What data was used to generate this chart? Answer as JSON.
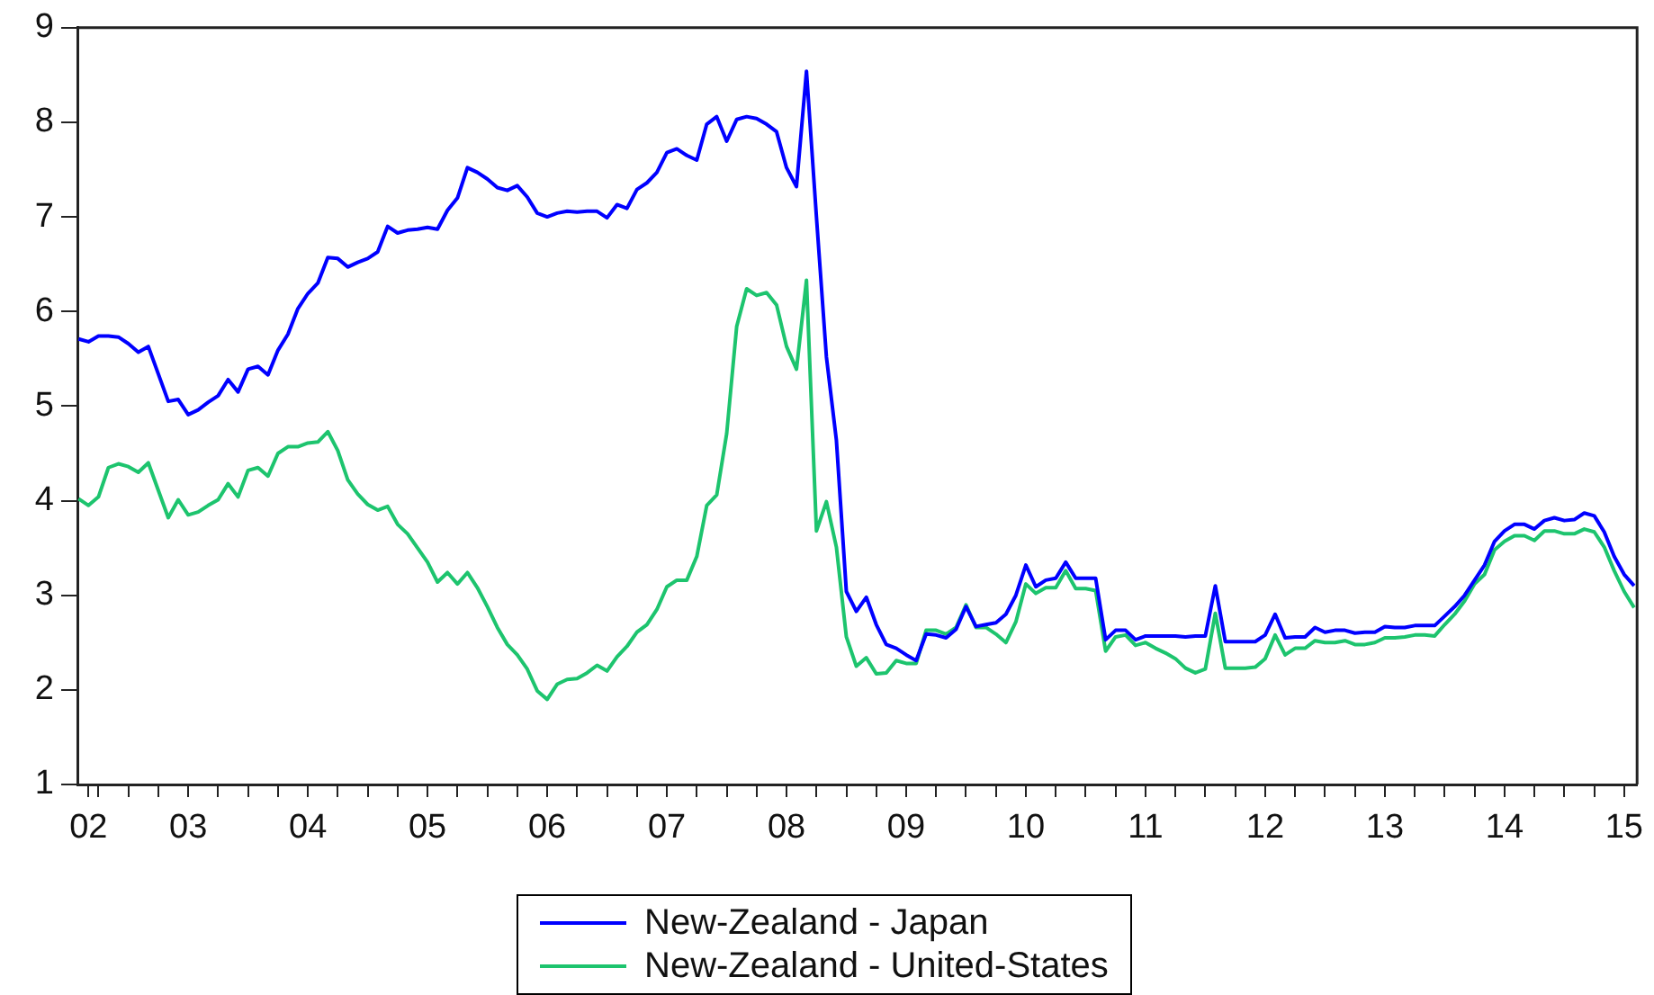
{
  "chart_data": {
    "type": "line",
    "legend": "bottom",
    "grid": false,
    "line_style": "solid",
    "marker": "none",
    "x": [
      "2002-08",
      "2002-09",
      "2002-10",
      "2002-11",
      "2002-12",
      "2003-01",
      "2003-02",
      "2003-03",
      "2003-04",
      "2003-05",
      "2003-06",
      "2003-07",
      "2003-08",
      "2003-09",
      "2003-10",
      "2003-11",
      "2003-12",
      "2004-01",
      "2004-02",
      "2004-03",
      "2004-04",
      "2004-05",
      "2004-06",
      "2004-07",
      "2004-08",
      "2004-09",
      "2004-10",
      "2004-11",
      "2004-12",
      "2005-01",
      "2005-02",
      "2005-03",
      "2005-04",
      "2005-05",
      "2005-06",
      "2005-07",
      "2005-08",
      "2005-09",
      "2005-10",
      "2005-11",
      "2005-12",
      "2006-01",
      "2006-02",
      "2006-03",
      "2006-04",
      "2006-05",
      "2006-06",
      "2006-07",
      "2006-08",
      "2006-09",
      "2006-10",
      "2006-11",
      "2006-12",
      "2007-01",
      "2007-02",
      "2007-03",
      "2007-04",
      "2007-05",
      "2007-06",
      "2007-07",
      "2007-08",
      "2007-09",
      "2007-10",
      "2007-11",
      "2007-12",
      "2008-01",
      "2008-02",
      "2008-03",
      "2008-04",
      "2008-05",
      "2008-06",
      "2008-07",
      "2008-08",
      "2008-09",
      "2008-10",
      "2008-11",
      "2008-12",
      "2009-01",
      "2009-02",
      "2009-03",
      "2009-04",
      "2009-05",
      "2009-06",
      "2009-07",
      "2009-08",
      "2009-09",
      "2009-10",
      "2009-11",
      "2009-12",
      "2010-01",
      "2010-02",
      "2010-03",
      "2010-04",
      "2010-05",
      "2010-06",
      "2010-07",
      "2010-08",
      "2010-09",
      "2010-10",
      "2010-11",
      "2010-12",
      "2011-01",
      "2011-02",
      "2011-03",
      "2011-04",
      "2011-05",
      "2011-06",
      "2011-07",
      "2011-08",
      "2011-09",
      "2011-10",
      "2011-11",
      "2011-12",
      "2012-01",
      "2012-02",
      "2012-03",
      "2012-04",
      "2012-05",
      "2012-06",
      "2012-07",
      "2012-08",
      "2012-09",
      "2012-10",
      "2012-11",
      "2012-12",
      "2013-01",
      "2013-02",
      "2013-03",
      "2013-04",
      "2013-05",
      "2013-06",
      "2013-07",
      "2013-08",
      "2013-09",
      "2013-10",
      "2013-11",
      "2013-12",
      "2014-01",
      "2014-02",
      "2014-03",
      "2014-04",
      "2014-05",
      "2014-06",
      "2014-07",
      "2014-08",
      "2014-09",
      "2014-10",
      "2014-11",
      "2014-12",
      "2015-01",
      "2015-02",
      "2015-03",
      "2015-04",
      "2015-05",
      "2015-06",
      "2015-07",
      "2015-08"
    ],
    "xlim": [
      "2002-07-28",
      "2015-08-10"
    ],
    "xticks": [
      {
        "value": "2002-09",
        "label": "02"
      },
      {
        "value": "2002-10",
        "label": null
      },
      {
        "value": "2003-01",
        "label": null
      },
      {
        "value": "2003-04",
        "label": null
      },
      {
        "value": "2003-07",
        "label": "03"
      },
      {
        "value": "2003-10",
        "label": null
      },
      {
        "value": "2004-01",
        "label": null
      },
      {
        "value": "2004-04",
        "label": null
      },
      {
        "value": "2004-07",
        "label": "04"
      },
      {
        "value": "2004-10",
        "label": null
      },
      {
        "value": "2005-01",
        "label": null
      },
      {
        "value": "2005-04",
        "label": null
      },
      {
        "value": "2005-07",
        "label": "05"
      },
      {
        "value": "2005-10",
        "label": null
      },
      {
        "value": "2006-01",
        "label": null
      },
      {
        "value": "2006-04",
        "label": null
      },
      {
        "value": "2006-07",
        "label": "06"
      },
      {
        "value": "2006-10",
        "label": null
      },
      {
        "value": "2007-01",
        "label": null
      },
      {
        "value": "2007-04",
        "label": null
      },
      {
        "value": "2007-07",
        "label": "07"
      },
      {
        "value": "2007-10",
        "label": null
      },
      {
        "value": "2008-01",
        "label": null
      },
      {
        "value": "2008-04",
        "label": null
      },
      {
        "value": "2008-07",
        "label": "08"
      },
      {
        "value": "2008-10",
        "label": null
      },
      {
        "value": "2009-01",
        "label": null
      },
      {
        "value": "2009-04",
        "label": null
      },
      {
        "value": "2009-07",
        "label": "09"
      },
      {
        "value": "2009-10",
        "label": null
      },
      {
        "value": "2010-01",
        "label": null
      },
      {
        "value": "2010-04",
        "label": null
      },
      {
        "value": "2010-07",
        "label": "10"
      },
      {
        "value": "2010-10",
        "label": null
      },
      {
        "value": "2011-01",
        "label": null
      },
      {
        "value": "2011-04",
        "label": null
      },
      {
        "value": "2011-07",
        "label": "11"
      },
      {
        "value": "2011-10",
        "label": null
      },
      {
        "value": "2012-01",
        "label": null
      },
      {
        "value": "2012-04",
        "label": null
      },
      {
        "value": "2012-07",
        "label": "12"
      },
      {
        "value": "2012-10",
        "label": null
      },
      {
        "value": "2013-01",
        "label": null
      },
      {
        "value": "2013-04",
        "label": null
      },
      {
        "value": "2013-07",
        "label": "13"
      },
      {
        "value": "2013-10",
        "label": null
      },
      {
        "value": "2014-01",
        "label": null
      },
      {
        "value": "2014-04",
        "label": null
      },
      {
        "value": "2014-07",
        "label": "14"
      },
      {
        "value": "2014-10",
        "label": null
      },
      {
        "value": "2015-01",
        "label": null
      },
      {
        "value": "2015-04",
        "label": null
      },
      {
        "value": "2015-07",
        "label": "15"
      }
    ],
    "ylim": [
      1,
      9
    ],
    "yticks": [
      1,
      2,
      3,
      4,
      5,
      6,
      7,
      8,
      9
    ],
    "series": [
      {
        "name": "New-Zealand - Japan",
        "color": "#0000ff",
        "values": [
          5.71,
          5.68,
          5.74,
          5.74,
          5.73,
          5.66,
          5.57,
          5.63,
          5.34,
          5.05,
          5.07,
          4.91,
          4.96,
          5.04,
          5.11,
          5.28,
          5.15,
          5.39,
          5.42,
          5.33,
          5.59,
          5.76,
          6.03,
          6.19,
          6.3,
          6.57,
          6.56,
          6.47,
          6.52,
          6.56,
          6.63,
          6.9,
          6.83,
          6.86,
          6.87,
          6.89,
          6.87,
          7.07,
          7.2,
          7.52,
          7.47,
          7.4,
          7.31,
          7.28,
          7.33,
          7.21,
          7.04,
          7.0,
          7.04,
          7.06,
          7.05,
          7.06,
          7.06,
          6.99,
          7.13,
          7.09,
          7.29,
          7.36,
          7.47,
          7.68,
          7.72,
          7.65,
          7.6,
          7.98,
          8.06,
          7.8,
          8.03,
          8.06,
          8.04,
          7.98,
          7.9,
          7.52,
          7.32,
          8.54,
          7.0,
          5.52,
          4.64,
          3.04,
          2.83,
          2.98,
          2.69,
          2.48,
          2.44,
          2.37,
          2.31,
          2.59,
          2.58,
          2.55,
          2.64,
          2.88,
          2.67,
          2.69,
          2.71,
          2.8,
          3.0,
          3.32,
          3.09,
          3.16,
          3.18,
          3.35,
          3.18,
          3.18,
          3.18,
          2.53,
          2.63,
          2.63,
          2.53,
          2.57,
          2.57,
          2.57,
          2.57,
          2.56,
          2.57,
          2.57,
          3.1,
          2.51,
          2.51,
          2.51,
          2.51,
          2.58,
          2.8,
          2.55,
          2.56,
          2.56,
          2.66,
          2.61,
          2.63,
          2.63,
          2.6,
          2.61,
          2.61,
          2.67,
          2.66,
          2.66,
          2.68,
          2.68,
          2.68,
          2.78,
          2.88,
          3.0,
          3.16,
          3.32,
          3.57,
          3.68,
          3.75,
          3.75,
          3.7,
          3.79,
          3.82,
          3.79,
          3.8,
          3.87,
          3.84,
          3.67,
          3.41,
          3.22,
          3.1
        ]
      },
      {
        "name": "New-Zealand - United-States",
        "color": "#1dc46e",
        "values": [
          4.02,
          3.95,
          4.04,
          4.35,
          4.39,
          4.36,
          4.3,
          4.4,
          4.11,
          3.82,
          4.01,
          3.85,
          3.88,
          3.95,
          4.01,
          4.18,
          4.04,
          4.32,
          4.35,
          4.26,
          4.5,
          4.57,
          4.57,
          4.61,
          4.62,
          4.73,
          4.53,
          4.22,
          4.07,
          3.96,
          3.9,
          3.94,
          3.75,
          3.65,
          3.5,
          3.35,
          3.14,
          3.24,
          3.12,
          3.24,
          3.08,
          2.88,
          2.66,
          2.48,
          2.37,
          2.22,
          1.99,
          1.9,
          2.06,
          2.11,
          2.12,
          2.18,
          2.26,
          2.2,
          2.35,
          2.46,
          2.61,
          2.69,
          2.85,
          3.09,
          3.16,
          3.16,
          3.41,
          3.95,
          4.06,
          4.71,
          5.84,
          6.24,
          6.17,
          6.2,
          6.07,
          5.63,
          5.39,
          6.33,
          3.68,
          3.99,
          3.51,
          2.56,
          2.25,
          2.34,
          2.17,
          2.18,
          2.31,
          2.28,
          2.28,
          2.63,
          2.63,
          2.59,
          2.66,
          2.9,
          2.66,
          2.66,
          2.59,
          2.5,
          2.72,
          3.12,
          3.02,
          3.08,
          3.08,
          3.26,
          3.07,
          3.07,
          3.05,
          2.41,
          2.56,
          2.58,
          2.47,
          2.5,
          2.44,
          2.39,
          2.33,
          2.23,
          2.18,
          2.22,
          2.81,
          2.23,
          2.23,
          2.23,
          2.24,
          2.33,
          2.58,
          2.37,
          2.44,
          2.44,
          2.52,
          2.5,
          2.5,
          2.52,
          2.48,
          2.48,
          2.5,
          2.55,
          2.55,
          2.56,
          2.58,
          2.58,
          2.57,
          2.69,
          2.8,
          2.94,
          3.12,
          3.22,
          3.48,
          3.57,
          3.63,
          3.63,
          3.58,
          3.68,
          3.68,
          3.65,
          3.65,
          3.7,
          3.67,
          3.51,
          3.26,
          3.04,
          2.87
        ]
      }
    ]
  }
}
